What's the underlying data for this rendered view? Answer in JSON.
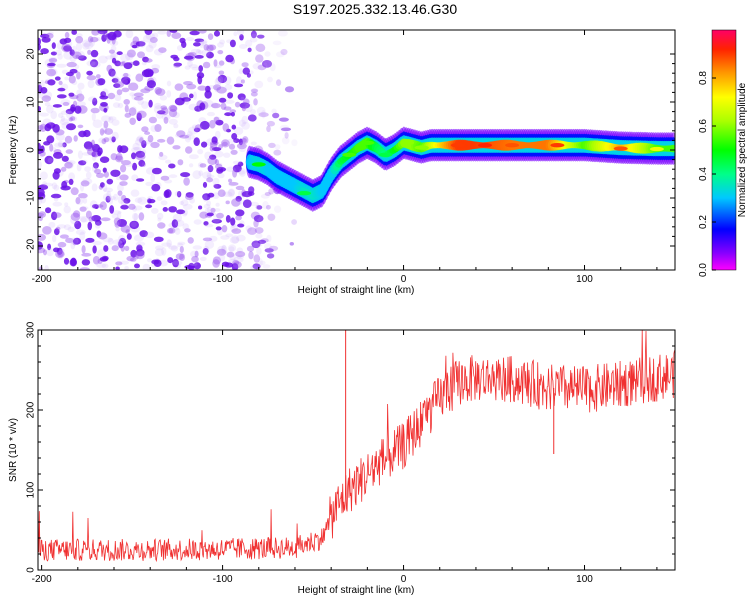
{
  "title": "S197.2025.332.13.46.G30",
  "chart_data": [
    {
      "type": "heatmap",
      "name": "spectrogram",
      "xlabel": "Height of straight line (km)",
      "ylabel": "Frequency (Hz)",
      "xlim": [
        -202,
        150
      ],
      "ylim": [
        -25,
        25
      ],
      "xticks": [
        -200,
        -100,
        0,
        100
      ],
      "yticks": [
        -20,
        -10,
        0,
        10,
        20
      ],
      "noise_region_x": [
        -202,
        -60
      ],
      "ridge": {
        "x": [
          -85,
          -80,
          -75,
          -70,
          -65,
          -60,
          -55,
          -50,
          -45,
          -40,
          -35,
          -30,
          -25,
          -20,
          -15,
          -10,
          -5,
          0,
          5,
          10,
          15,
          20,
          30,
          40,
          60,
          80,
          100,
          120,
          140,
          150
        ],
        "y": [
          -2.5,
          -3.0,
          -4.0,
          -5.5,
          -6.5,
          -7.5,
          -8.5,
          -9.5,
          -8.5,
          -5.0,
          -2.5,
          -1.0,
          0.5,
          1.5,
          0.5,
          -1.0,
          0.0,
          1.5,
          1.0,
          0.5,
          1.0,
          1.0,
          1.0,
          1.0,
          1.0,
          1.0,
          1.0,
          0.5,
          0.3,
          0.3
        ],
        "amplitude": [
          0.3,
          0.35,
          0.3,
          0.3,
          0.3,
          0.3,
          0.35,
          0.35,
          0.3,
          0.3,
          0.45,
          0.5,
          0.55,
          0.55,
          0.45,
          0.4,
          0.5,
          0.6,
          0.6,
          0.55,
          0.65,
          0.75,
          0.9,
          0.9,
          0.85,
          0.85,
          0.55,
          0.8,
          0.55,
          0.55
        ]
      },
      "colorbar": {
        "label": "Normalized spectral amplitude",
        "range": [
          0,
          1
        ],
        "ticks": [
          "0.0",
          "0.2",
          "0.4",
          "0.6",
          "0.8"
        ]
      }
    },
    {
      "type": "line",
      "name": "snr",
      "xlabel": "Height of straight line (km)",
      "ylabel": "SNR (10 * v/v)",
      "xlim": [
        -202,
        150
      ],
      "ylim": [
        0,
        300
      ],
      "xticks": [
        -200,
        -100,
        0,
        100
      ],
      "yticks": [
        0,
        100,
        200,
        300
      ],
      "color": "#f03030",
      "trend": {
        "x": [
          -202,
          -150,
          -100,
          -60,
          -45,
          -38,
          -30,
          -20,
          -10,
          0,
          10,
          20,
          30,
          40,
          60,
          80,
          100,
          120,
          150
        ],
        "y": [
          25,
          25,
          26,
          28,
          40,
          75,
          100,
          120,
          140,
          155,
          185,
          215,
          235,
          240,
          238,
          228,
          225,
          232,
          245
        ]
      },
      "spikes": [
        {
          "x": -32,
          "y": 300
        },
        {
          "x": 83,
          "y": 145
        }
      ]
    }
  ]
}
